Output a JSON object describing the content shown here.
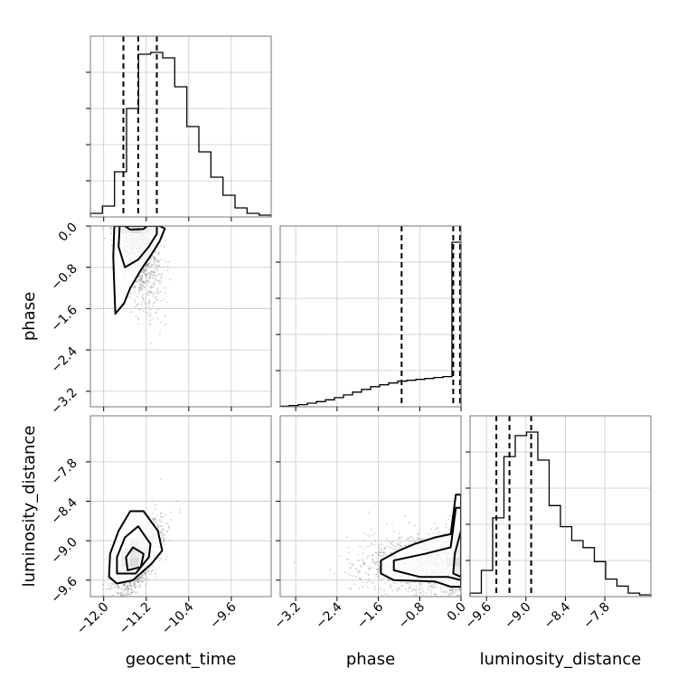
{
  "chart_data": {
    "type": "corner",
    "parameters": [
      "geocent_time",
      "phase",
      "luminosity_distance"
    ],
    "ranges": {
      "geocent_time": [
        -12.25,
        -8.85
      ],
      "phase": [
        -3.5,
        0.0
      ],
      "luminosity_distance": [
        -9.85,
        -7.1
      ]
    },
    "ticks": {
      "geocent_time": [
        "-12.0",
        "-11.2",
        "-10.4",
        "-9.6"
      ],
      "phase": [
        "-3.2",
        "-2.4",
        "-1.6",
        "-0.8",
        "0.0"
      ],
      "luminosity_distance": [
        "-9.6",
        "-9.0",
        "-8.4",
        "-7.8"
      ]
    },
    "grid": true,
    "histograms": {
      "geocent_time": {
        "counts": [
          0.02,
          0.06,
          0.25,
          0.6,
          0.9,
          0.91,
          0.88,
          0.72,
          0.5,
          0.36,
          0.22,
          0.12,
          0.05,
          0.02,
          0.01
        ],
        "quantiles": [
          -11.63,
          -11.35,
          -11.0
        ]
      },
      "phase": {
        "counts": [
          0.003,
          0.007,
          0.012,
          0.02,
          0.028,
          0.038,
          0.05,
          0.065,
          0.08,
          0.095,
          0.11,
          0.12,
          0.13,
          0.14,
          0.145,
          0.15,
          0.155,
          0.16,
          0.165,
          0.9
        ],
        "quantiles": [
          -1.15,
          -0.15,
          -0.02
        ]
      },
      "luminosity_distance": {
        "counts": [
          0.02,
          0.15,
          0.45,
          0.8,
          0.92,
          0.94,
          0.78,
          0.52,
          0.4,
          0.32,
          0.28,
          0.2,
          0.1,
          0.06,
          0.02,
          0.01
        ],
        "quantiles": [
          -9.45,
          -9.25,
          -8.92
        ]
      }
    },
    "contours": {
      "phase_vs_geocent_time": {
        "center": [
          -11.4,
          -0.1
        ],
        "levels": [
          [
            [
              -11.78,
              -1.7
            ],
            [
              -11.62,
              -1.5
            ],
            [
              -11.5,
              -1.2
            ],
            [
              -11.3,
              -0.85
            ],
            [
              -11.1,
              -0.55
            ],
            [
              -10.95,
              -0.3
            ],
            [
              -10.85,
              -0.05
            ],
            [
              -10.95,
              0.0
            ],
            [
              -11.8,
              0.0
            ],
            [
              -11.82,
              -0.6
            ],
            [
              -11.8,
              -1.2
            ]
          ],
          [
            [
              -11.6,
              -0.8
            ],
            [
              -11.35,
              -0.65
            ],
            [
              -11.15,
              -0.4
            ],
            [
              -11.0,
              -0.15
            ],
            [
              -11.0,
              0.0
            ],
            [
              -11.7,
              0.0
            ],
            [
              -11.72,
              -0.4
            ]
          ],
          [
            [
              -11.5,
              -0.07
            ],
            [
              -11.25,
              -0.06
            ],
            [
              -11.18,
              0.0
            ],
            [
              -11.6,
              0.0
            ]
          ]
        ]
      },
      "luminosity_distance_vs_geocent_time": {
        "center": [
          -11.35,
          -9.35
        ],
        "levels": [
          [
            [
              -11.9,
              -9.55
            ],
            [
              -11.75,
              -9.65
            ],
            [
              -11.45,
              -9.6
            ],
            [
              -11.1,
              -9.35
            ],
            [
              -10.9,
              -9.15
            ],
            [
              -10.98,
              -8.85
            ],
            [
              -11.25,
              -8.55
            ],
            [
              -11.5,
              -8.55
            ],
            [
              -11.72,
              -8.85
            ],
            [
              -11.88,
              -9.2
            ]
          ],
          [
            [
              -11.75,
              -9.5
            ],
            [
              -11.4,
              -9.5
            ],
            [
              -11.15,
              -9.25
            ],
            [
              -11.12,
              -9.05
            ],
            [
              -11.35,
              -8.78
            ],
            [
              -11.6,
              -8.95
            ],
            [
              -11.75,
              -9.25
            ]
          ],
          [
            [
              -11.55,
              -9.45
            ],
            [
              -11.3,
              -9.4
            ],
            [
              -11.25,
              -9.2
            ],
            [
              -11.45,
              -9.1
            ],
            [
              -11.58,
              -9.25
            ]
          ]
        ]
      },
      "luminosity_distance_vs_phase": {
        "center": [
          -0.05,
          -9.4
        ],
        "levels": [
          [
            [
              -1.55,
              -9.5
            ],
            [
              -1.3,
              -9.6
            ],
            [
              -0.5,
              -9.62
            ],
            [
              -0.2,
              -9.7
            ],
            [
              0.0,
              -9.7
            ],
            [
              0.0,
              -8.3
            ],
            [
              -0.1,
              -8.3
            ],
            [
              -0.2,
              -8.9
            ],
            [
              -0.5,
              -8.95
            ],
            [
              -0.9,
              -9.05
            ],
            [
              -1.2,
              -9.15
            ],
            [
              -1.55,
              -9.3
            ]
          ],
          [
            [
              -1.3,
              -9.45
            ],
            [
              -0.8,
              -9.55
            ],
            [
              -0.25,
              -9.55
            ],
            [
              0.0,
              -9.6
            ],
            [
              0.0,
              -8.5
            ],
            [
              -0.1,
              -8.5
            ],
            [
              -0.2,
              -9.1
            ],
            [
              -0.7,
              -9.2
            ],
            [
              -1.3,
              -9.3
            ]
          ],
          [
            [
              -0.15,
              -9.5
            ],
            [
              0.0,
              -9.55
            ],
            [
              0.0,
              -8.85
            ],
            [
              -0.12,
              -9.2
            ]
          ]
        ]
      }
    }
  }
}
